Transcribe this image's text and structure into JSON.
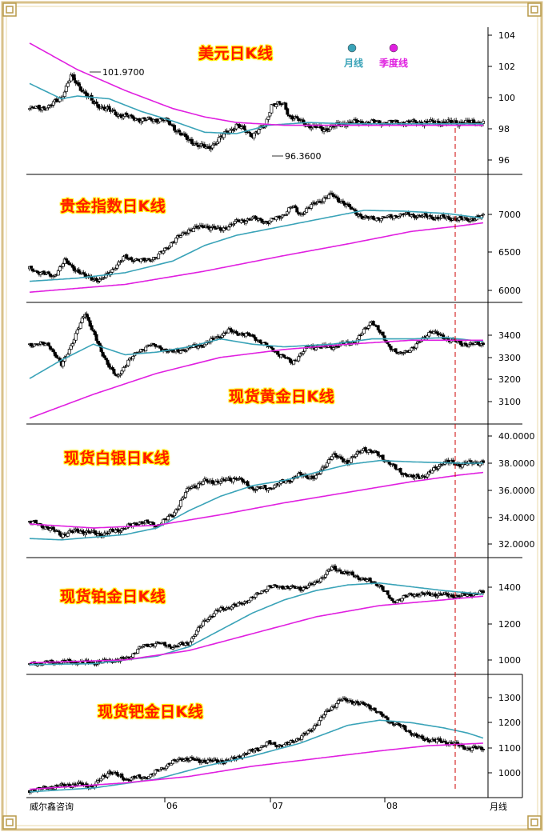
{
  "colors": {
    "ma_month": "#3aa3b8",
    "ma_season": "#e020e0",
    "axis": "#000000",
    "marker": "#cc0000",
    "frame": "#d9c28a"
  },
  "legend": {
    "month": "月线",
    "season": "季度线"
  },
  "footer": {
    "brand": "威尔鑫咨询",
    "period": "月线",
    "months": [
      "06",
      "07",
      "08"
    ]
  },
  "chart_data": [
    {
      "id": "usd",
      "type": "candlestick",
      "title": "美元日K线",
      "yticks": [
        "104",
        "102",
        "100",
        "98",
        "96"
      ],
      "ylim": [
        95,
        105
      ],
      "annotations": [
        {
          "text": "101.9700",
          "value": 101.97
        },
        {
          "text": "96.3600",
          "value": 96.36
        }
      ],
      "anchors": [
        [
          0,
          99.5
        ],
        [
          12,
          99.6
        ],
        [
          20,
          100.3
        ],
        [
          26,
          101.8
        ],
        [
          40,
          99.9
        ],
        [
          55,
          99.1
        ],
        [
          70,
          98.7
        ],
        [
          85,
          98.7
        ],
        [
          100,
          97.2
        ],
        [
          112,
          96.6
        ],
        [
          120,
          97.4
        ],
        [
          130,
          98.3
        ],
        [
          140,
          97.6
        ],
        [
          148,
          98.3
        ],
        [
          152,
          99.8
        ],
        [
          160,
          99.8
        ],
        [
          163,
          99.0
        ],
        [
          175,
          98.3
        ],
        [
          185,
          98.0
        ],
        [
          200,
          98.5
        ]
      ],
      "ma_month": [
        [
          0,
          101.3
        ],
        [
          20,
          100.2
        ],
        [
          30,
          100.4
        ],
        [
          50,
          100.2
        ],
        [
          70,
          99.3
        ],
        [
          90,
          98.6
        ],
        [
          110,
          97.8
        ],
        [
          130,
          97.7
        ],
        [
          150,
          98.3
        ],
        [
          175,
          98.5
        ],
        [
          200,
          98.4
        ]
      ],
      "ma_season": [
        [
          0,
          104.2
        ],
        [
          30,
          102.3
        ],
        [
          60,
          100.8
        ],
        [
          90,
          99.5
        ],
        [
          110,
          98.9
        ],
        [
          130,
          98.5
        ],
        [
          160,
          98.3
        ],
        [
          200,
          98.3
        ]
      ]
    },
    {
      "id": "gold_index",
      "type": "candlestick",
      "title": "贵金指数日K线",
      "yticks": [
        "7000",
        "6500",
        "6000"
      ],
      "ylim": [
        5860,
        7400
      ],
      "anchors": [
        [
          0,
          6250
        ],
        [
          15,
          6150
        ],
        [
          22,
          6350
        ],
        [
          35,
          6150
        ],
        [
          45,
          6100
        ],
        [
          55,
          6300
        ],
        [
          60,
          6400
        ],
        [
          70,
          6350
        ],
        [
          80,
          6400
        ],
        [
          90,
          6600
        ],
        [
          100,
          6750
        ],
        [
          110,
          6800
        ],
        [
          120,
          6750
        ],
        [
          130,
          6850
        ],
        [
          140,
          6900
        ],
        [
          150,
          6850
        ],
        [
          160,
          6950
        ],
        [
          165,
          7050
        ],
        [
          170,
          6950
        ],
        [
          180,
          7100
        ],
        [
          190,
          7200
        ],
        [
          200,
          7050
        ],
        [
          210,
          6900
        ],
        [
          222,
          6900
        ],
        [
          235,
          6950
        ],
        [
          248,
          6920
        ],
        [
          262,
          6900
        ],
        [
          275,
          6880
        ],
        [
          285,
          6920
        ]
      ],
      "ma_month": [
        [
          0,
          6090
        ],
        [
          30,
          6130
        ],
        [
          60,
          6200
        ],
        [
          90,
          6350
        ],
        [
          110,
          6550
        ],
        [
          130,
          6680
        ],
        [
          160,
          6800
        ],
        [
          190,
          6920
        ],
        [
          210,
          7000
        ],
        [
          235,
          6990
        ],
        [
          262,
          6960
        ],
        [
          285,
          6900
        ]
      ],
      "ma_season": [
        [
          0,
          5950
        ],
        [
          60,
          6050
        ],
        [
          110,
          6220
        ],
        [
          160,
          6420
        ],
        [
          200,
          6570
        ],
        [
          240,
          6730
        ],
        [
          270,
          6800
        ],
        [
          285,
          6840
        ]
      ]
    },
    {
      "id": "spot_gold",
      "type": "candlestick",
      "title": "现货黄金日K线",
      "yticks": [
        "3400",
        "3300",
        "3200",
        "3100"
      ],
      "ylim": [
        3040,
        3470
      ],
      "anchors": [
        [
          0,
          3330
        ],
        [
          12,
          3330
        ],
        [
          20,
          3250
        ],
        [
          28,
          3350
        ],
        [
          35,
          3450
        ],
        [
          45,
          3300
        ],
        [
          55,
          3200
        ],
        [
          62,
          3270
        ],
        [
          75,
          3330
        ],
        [
          90,
          3300
        ],
        [
          110,
          3330
        ],
        [
          125,
          3380
        ],
        [
          140,
          3360
        ],
        [
          155,
          3300
        ],
        [
          165,
          3260
        ],
        [
          175,
          3320
        ],
        [
          190,
          3320
        ],
        [
          205,
          3340
        ],
        [
          215,
          3420
        ],
        [
          225,
          3330
        ],
        [
          232,
          3290
        ],
        [
          242,
          3320
        ],
        [
          252,
          3380
        ],
        [
          262,
          3350
        ],
        [
          272,
          3330
        ],
        [
          285,
          3330
        ]
      ],
      "ma_month": [
        [
          0,
          3200
        ],
        [
          20,
          3270
        ],
        [
          40,
          3330
        ],
        [
          60,
          3290
        ],
        [
          80,
          3300
        ],
        [
          100,
          3320
        ],
        [
          120,
          3350
        ],
        [
          140,
          3330
        ],
        [
          160,
          3320
        ],
        [
          190,
          3330
        ],
        [
          215,
          3350
        ],
        [
          240,
          3350
        ],
        [
          262,
          3355
        ],
        [
          285,
          3340
        ]
      ],
      "ma_season": [
        [
          0,
          3050
        ],
        [
          40,
          3140
        ],
        [
          80,
          3220
        ],
        [
          120,
          3280
        ],
        [
          160,
          3310
        ],
        [
          200,
          3330
        ],
        [
          240,
          3345
        ],
        [
          285,
          3345
        ]
      ]
    },
    {
      "id": "spot_silver",
      "type": "candlestick",
      "title": "现货白银日K线",
      "yticks": [
        "40.0000",
        "38.0000",
        "36.0000",
        "34.0000",
        "32.0000"
      ],
      "ylim": [
        31.0,
        40.5
      ],
      "anchors": [
        [
          0,
          33.5
        ],
        [
          12,
          33.0
        ],
        [
          20,
          32.5
        ],
        [
          30,
          32.8
        ],
        [
          45,
          32.5
        ],
        [
          60,
          33.0
        ],
        [
          70,
          33.5
        ],
        [
          80,
          33.2
        ],
        [
          90,
          34.0
        ],
        [
          100,
          36.0
        ],
        [
          110,
          36.5
        ],
        [
          120,
          36.5
        ],
        [
          130,
          36.8
        ],
        [
          140,
          36.0
        ],
        [
          150,
          36.0
        ],
        [
          160,
          36.5
        ],
        [
          170,
          37.0
        ],
        [
          180,
          36.8
        ],
        [
          190,
          38.5
        ],
        [
          200,
          38.0
        ],
        [
          210,
          39.0
        ],
        [
          220,
          38.5
        ],
        [
          230,
          37.5
        ],
        [
          240,
          36.8
        ],
        [
          250,
          37.0
        ],
        [
          260,
          38.0
        ],
        [
          270,
          37.8
        ],
        [
          285,
          38.0
        ]
      ],
      "ma_month": [
        [
          0,
          32.2
        ],
        [
          20,
          32.1
        ],
        [
          40,
          32.3
        ],
        [
          60,
          32.5
        ],
        [
          80,
          33.0
        ],
        [
          100,
          34.3
        ],
        [
          120,
          35.4
        ],
        [
          140,
          36.2
        ],
        [
          160,
          36.6
        ],
        [
          180,
          37.2
        ],
        [
          200,
          37.8
        ],
        [
          220,
          38.1
        ],
        [
          240,
          38.0
        ],
        [
          270,
          37.9
        ],
        [
          285,
          37.9
        ]
      ],
      "ma_season": [
        [
          0,
          33.3
        ],
        [
          40,
          33.0
        ],
        [
          80,
          33.2
        ],
        [
          120,
          34.0
        ],
        [
          160,
          34.9
        ],
        [
          200,
          35.7
        ],
        [
          240,
          36.5
        ],
        [
          270,
          37.0
        ],
        [
          285,
          37.2
        ]
      ]
    },
    {
      "id": "spot_platinum",
      "type": "candlestick",
      "title": "现货铂金日K线",
      "yticks": [
        "1400",
        "1200",
        "1000"
      ],
      "ylim": [
        930,
        1510
      ],
      "anchors": [
        [
          0,
          970
        ],
        [
          20,
          980
        ],
        [
          40,
          975
        ],
        [
          55,
          990
        ],
        [
          62,
          1000
        ],
        [
          70,
          1060
        ],
        [
          80,
          1080
        ],
        [
          90,
          1060
        ],
        [
          100,
          1080
        ],
        [
          110,
          1200
        ],
        [
          120,
          1260
        ],
        [
          130,
          1280
        ],
        [
          140,
          1320
        ],
        [
          150,
          1380
        ],
        [
          160,
          1380
        ],
        [
          170,
          1370
        ],
        [
          180,
          1400
        ],
        [
          190,
          1480
        ],
        [
          200,
          1450
        ],
        [
          210,
          1420
        ],
        [
          220,
          1390
        ],
        [
          228,
          1300
        ],
        [
          240,
          1340
        ],
        [
          255,
          1340
        ],
        [
          270,
          1330
        ],
        [
          285,
          1350
        ]
      ],
      "ma_month": [
        [
          0,
          965
        ],
        [
          40,
          970
        ],
        [
          80,
          1010
        ],
        [
          100,
          1060
        ],
        [
          120,
          1150
        ],
        [
          140,
          1240
        ],
        [
          160,
          1310
        ],
        [
          180,
          1360
        ],
        [
          200,
          1390
        ],
        [
          220,
          1400
        ],
        [
          240,
          1380
        ],
        [
          260,
          1360
        ],
        [
          285,
          1340
        ]
      ],
      "ma_season": [
        [
          0,
          975
        ],
        [
          60,
          990
        ],
        [
          100,
          1040
        ],
        [
          140,
          1130
        ],
        [
          180,
          1220
        ],
        [
          220,
          1280
        ],
        [
          260,
          1310
        ],
        [
          285,
          1330
        ]
      ]
    },
    {
      "id": "spot_palladium",
      "type": "candlestick",
      "title": "现货钯金日K线",
      "yticks": [
        "1300",
        "1200",
        "1100",
        "1000"
      ],
      "ylim": [
        930,
        1380
      ],
      "anchors": [
        [
          0,
          945
        ],
        [
          15,
          960
        ],
        [
          30,
          970
        ],
        [
          40,
          960
        ],
        [
          50,
          1020
        ],
        [
          60,
          990
        ],
        [
          75,
          1000
        ],
        [
          85,
          1040
        ],
        [
          95,
          1070
        ],
        [
          110,
          1060
        ],
        [
          125,
          1060
        ],
        [
          140,
          1100
        ],
        [
          150,
          1130
        ],
        [
          160,
          1120
        ],
        [
          175,
          1170
        ],
        [
          185,
          1240
        ],
        [
          195,
          1300
        ],
        [
          205,
          1290
        ],
        [
          215,
          1270
        ],
        [
          225,
          1220
        ],
        [
          235,
          1190
        ],
        [
          245,
          1150
        ],
        [
          255,
          1140
        ],
        [
          265,
          1130
        ],
        [
          275,
          1110
        ],
        [
          285,
          1110
        ]
      ],
      "ma_month": [
        [
          0,
          940
        ],
        [
          40,
          955
        ],
        [
          80,
          990
        ],
        [
          110,
          1040
        ],
        [
          140,
          1080
        ],
        [
          170,
          1130
        ],
        [
          200,
          1200
        ],
        [
          220,
          1220
        ],
        [
          240,
          1210
        ],
        [
          260,
          1190
        ],
        [
          275,
          1170
        ],
        [
          285,
          1150
        ]
      ],
      "ma_season": [
        [
          0,
          950
        ],
        [
          60,
          975
        ],
        [
          100,
          1000
        ],
        [
          140,
          1040
        ],
        [
          180,
          1070
        ],
        [
          220,
          1100
        ],
        [
          250,
          1120
        ],
        [
          285,
          1130
        ]
      ]
    }
  ]
}
